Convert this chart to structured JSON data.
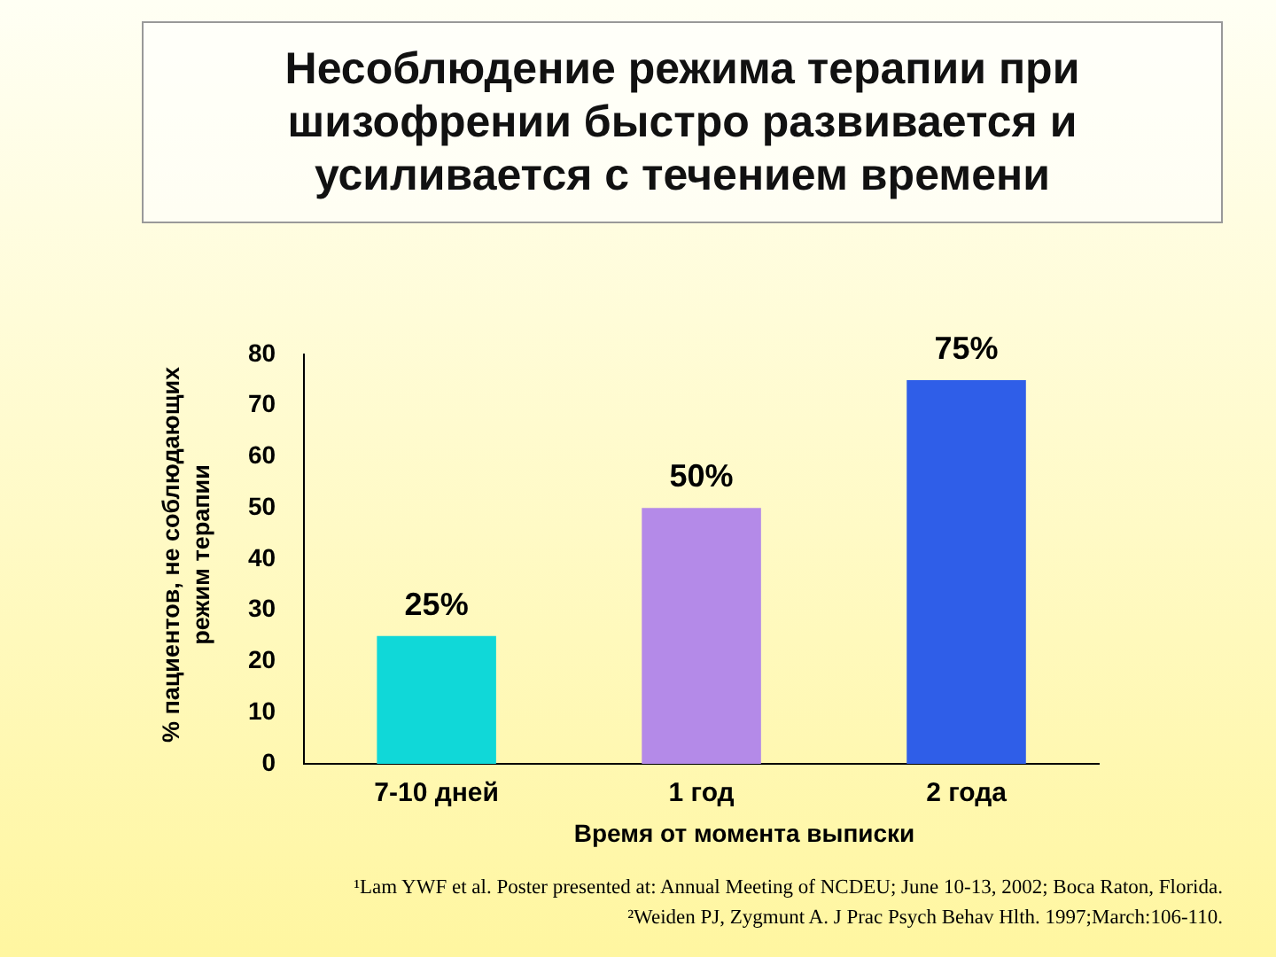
{
  "chart_data": {
    "type": "bar",
    "title": "Несоблюдение режима терапии при шизофрении быстро развивается и усиливается с течением времени",
    "xlabel": "Время от момента выписки",
    "ylabel": "% пациентов, не соблюдающих режим терапии",
    "categories": [
      "7-10 дней",
      "1 год",
      "2 года"
    ],
    "values": [
      25,
      50,
      75
    ],
    "colors": [
      "#10d8d8",
      "#b48ae8",
      "#2f5ee8"
    ],
    "value_labels": [
      "25%",
      "50%",
      "75%"
    ],
    "ylim": [
      0,
      80
    ],
    "yticks": [
      0,
      10,
      20,
      30,
      40,
      50,
      60,
      70,
      80
    ],
    "grid": false,
    "legend": false,
    "annotations": [
      "¹Lam YWF et al. Poster presented at: Annual Meeting of NCDEU; June 10-13, 2002; Boca Raton, Florida.",
      "²Weiden PJ, Zygmunt A. J Prac Psych Behav Hlth. 1997;March:106-110."
    ]
  }
}
